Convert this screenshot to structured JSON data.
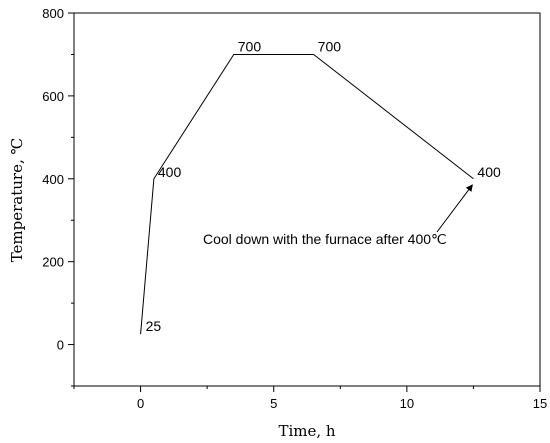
{
  "chart_data": {
    "type": "line",
    "xlabel": "Time, h",
    "ylabel": "Temperature, ℃",
    "xlim": [
      -2.5,
      15
    ],
    "ylim": [
      -100,
      800
    ],
    "xticks": [
      0,
      5,
      10,
      15
    ],
    "yticks": [
      0,
      200,
      400,
      600,
      800
    ],
    "grid": false,
    "series": [
      {
        "x": [
          0,
          0.5,
          3.5,
          6.5,
          12.5
        ],
        "y": [
          25,
          400,
          700,
          700,
          400
        ],
        "labels": [
          "25",
          "400",
          "700",
          "700",
          "400"
        ],
        "color": "#000000"
      }
    ],
    "annotation": {
      "text": "Cool down with the furnace after 400℃",
      "arrow_target": [
        12.5,
        400
      ]
    }
  }
}
